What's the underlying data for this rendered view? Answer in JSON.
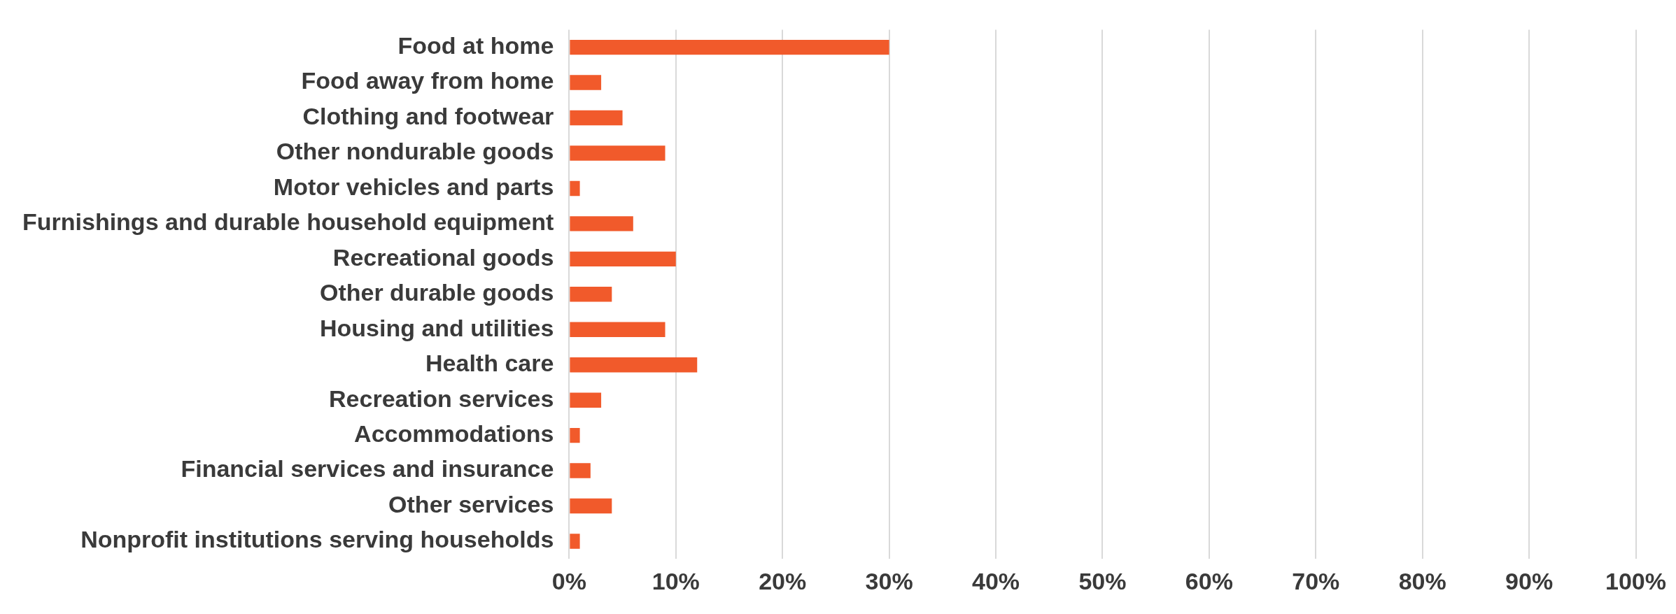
{
  "chart_data": {
    "type": "bar",
    "orientation": "horizontal",
    "categories": [
      "Food at home",
      "Food away from home",
      "Clothing and footwear",
      "Other nondurable goods",
      "Motor vehicles and parts",
      "Furnishings and durable household equipment",
      "Recreational goods",
      "Other durable goods",
      "Housing and utilities",
      "Health care",
      "Recreation services",
      "Accommodations",
      "Financial services and insurance",
      "Other services",
      "Nonprofit institutions serving households"
    ],
    "values": [
      30,
      3,
      5,
      9,
      1,
      6,
      10,
      4,
      9,
      12,
      3,
      1,
      2,
      4,
      1
    ],
    "color": "#f15a2b",
    "xlim": [
      0,
      100
    ],
    "xticks": [
      {
        "value": 0,
        "label": "0%"
      },
      {
        "value": 10,
        "label": "10%"
      },
      {
        "value": 20,
        "label": "20%"
      },
      {
        "value": 30,
        "label": "30%"
      },
      {
        "value": 40,
        "label": "40%"
      },
      {
        "value": 50,
        "label": "50%"
      },
      {
        "value": 60,
        "label": "60%"
      },
      {
        "value": 70,
        "label": "70%"
      },
      {
        "value": 80,
        "label": "80%"
      },
      {
        "value": 90,
        "label": "90%"
      },
      {
        "value": 100,
        "label": "100%"
      }
    ],
    "grid": "x",
    "legend": false
  }
}
